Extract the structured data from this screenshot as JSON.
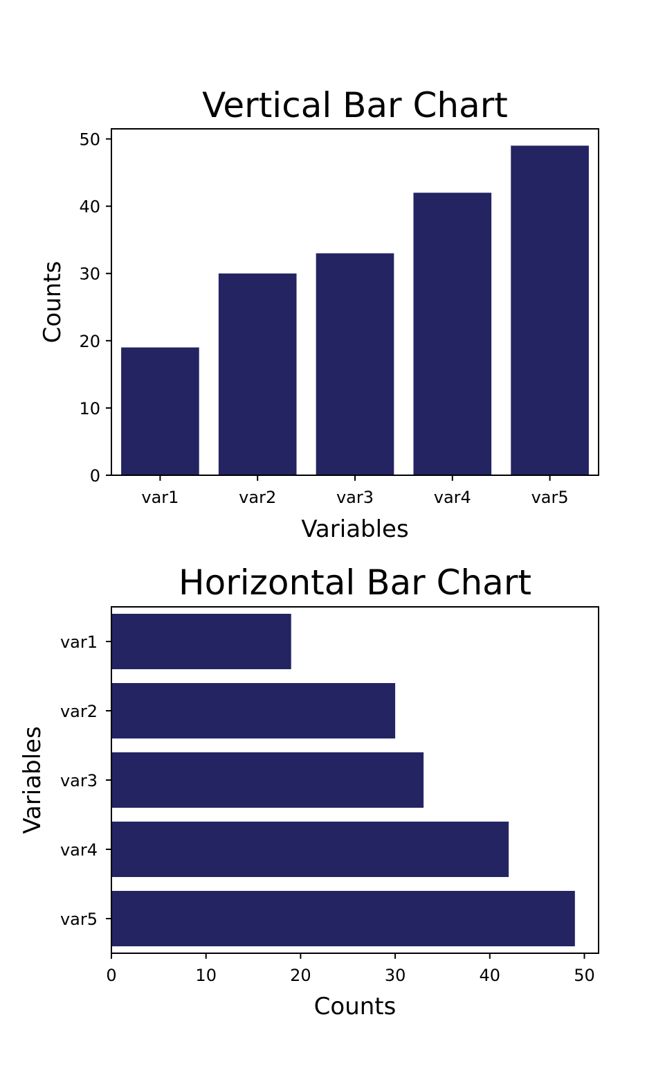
{
  "chart_data": [
    {
      "type": "bar",
      "orientation": "vertical",
      "title": "Vertical Bar Chart",
      "xlabel": "Variables",
      "ylabel": "Counts",
      "categories": [
        "var1",
        "var2",
        "var3",
        "var4",
        "var5"
      ],
      "values": [
        19,
        30,
        33,
        42,
        49
      ],
      "ylim": [
        0,
        51.5
      ],
      "yticks": [
        0,
        10,
        20,
        30,
        40,
        50
      ],
      "grid": false,
      "bar_color": "#242463"
    },
    {
      "type": "bar",
      "orientation": "horizontal",
      "title": "Horizontal Bar Chart",
      "xlabel": "Counts",
      "ylabel": "Variables",
      "categories": [
        "var1",
        "var2",
        "var3",
        "var4",
        "var5"
      ],
      "values": [
        19,
        30,
        33,
        42,
        49
      ],
      "xlim": [
        0,
        51.5
      ],
      "xticks": [
        0,
        10,
        20,
        30,
        40,
        50
      ],
      "grid": false,
      "bar_color": "#242463"
    }
  ]
}
